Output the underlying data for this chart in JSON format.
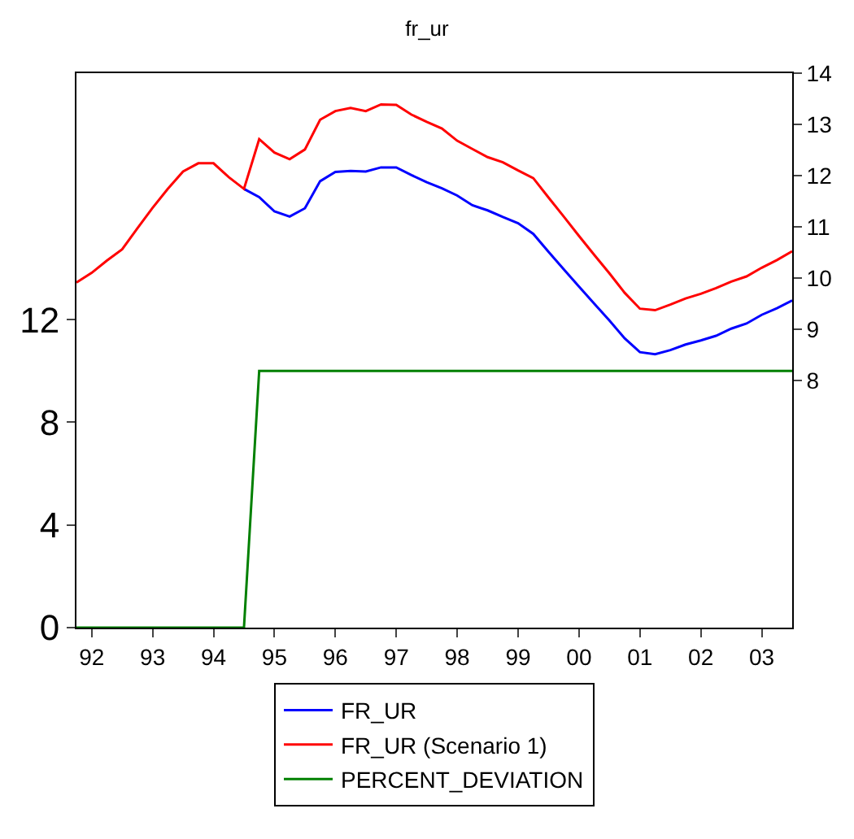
{
  "chart_data": {
    "type": "line",
    "title": "fr_ur",
    "categories": [
      null,
      "92",
      null,
      null,
      null,
      "93",
      null,
      null,
      null,
      "94",
      null,
      null,
      null,
      "95",
      null,
      null,
      null,
      "96",
      null,
      null,
      null,
      "97",
      null,
      null,
      null,
      "98",
      null,
      null,
      null,
      "99",
      null,
      null,
      null,
      "00",
      null,
      null,
      null,
      "01",
      null,
      null,
      null,
      "02",
      null,
      null,
      null,
      "03",
      null,
      null
    ],
    "series": [
      {
        "name": "FR_UR",
        "color": "#0000ff",
        "axis": "y2",
        "values": [
          null,
          null,
          null,
          null,
          null,
          null,
          null,
          null,
          null,
          null,
          null,
          11.74,
          11.58,
          11.3,
          11.2,
          11.36,
          11.89,
          12.07,
          12.09,
          12.08,
          12.16,
          12.16,
          12.01,
          11.87,
          11.75,
          11.61,
          11.42,
          11.32,
          11.19,
          11.07,
          10.86,
          10.51,
          10.17,
          9.83,
          9.5,
          9.17,
          8.82,
          8.55,
          8.51,
          8.59,
          8.7,
          8.78,
          8.87,
          9.01,
          9.11,
          9.28,
          9.41,
          9.56
        ]
      },
      {
        "name": "FR_UR (Scenario 1)",
        "color": "#ff0000",
        "axis": "y2",
        "values": [
          9.91,
          10.1,
          10.34,
          10.56,
          10.97,
          11.37,
          11.74,
          12.08,
          12.24,
          12.24,
          11.97,
          11.74,
          12.71,
          12.45,
          12.32,
          12.51,
          13.09,
          13.26,
          13.32,
          13.26,
          13.39,
          13.38,
          13.19,
          13.05,
          12.92,
          12.68,
          12.52,
          12.36,
          12.26,
          12.1,
          11.95,
          11.57,
          11.2,
          10.82,
          10.45,
          10.09,
          9.71,
          9.4,
          9.37,
          9.48,
          9.6,
          9.69,
          9.8,
          9.93,
          10.03,
          10.2,
          10.35,
          10.52
        ]
      },
      {
        "name": "PERCENT_DEVIATION",
        "color": "#008000",
        "axis": "y",
        "values": [
          0,
          0,
          0,
          0,
          0,
          0,
          0,
          0,
          0,
          0,
          0,
          0,
          10,
          10,
          10,
          10,
          10,
          10,
          10,
          10,
          10,
          10,
          10,
          10,
          10,
          10,
          10,
          10,
          10,
          10,
          10,
          10,
          10,
          10,
          10,
          10,
          10,
          10,
          10,
          10,
          10,
          10,
          10,
          10,
          10,
          10,
          10,
          10
        ]
      }
    ],
    "ylim": [
      0,
      21.6
    ],
    "yticks": [
      0,
      4,
      8,
      12
    ],
    "y2lim": [
      3.17,
      14
    ],
    "y2ticks": [
      8,
      9,
      10,
      11,
      12,
      13,
      14
    ],
    "legend": "bottom",
    "marker": "none",
    "line_style": "solid"
  }
}
